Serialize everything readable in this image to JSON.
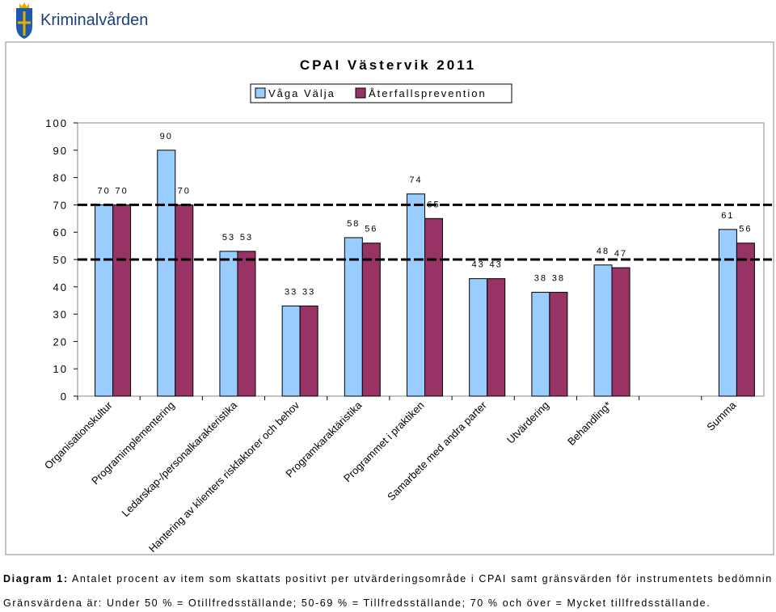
{
  "header": {
    "logo": "Kriminalvården"
  },
  "chart_data": {
    "type": "bar",
    "title": "CPAI Västervik 2011",
    "categories": [
      "Organisationskultur",
      "Programimplementering",
      "Ledarskap-/personalkarakteristika",
      "Hantering av klienters riskfaktorer och behov",
      "Programkaraktäristika",
      "Programmet i praktiken",
      "Samarbete med andra parter",
      "Utvärdering",
      "Behandling*",
      null,
      "Summa"
    ],
    "series": [
      {
        "name": "Våga Välja",
        "color": "#99ccff",
        "values": [
          70,
          90,
          53,
          33,
          58,
          74,
          43,
          38,
          48,
          null,
          61
        ]
      },
      {
        "name": "Återfallsprevention",
        "color": "#993366",
        "values": [
          70,
          70,
          53,
          33,
          56,
          65,
          43,
          38,
          47,
          null,
          56
        ]
      }
    ],
    "ylim": [
      0,
      100
    ],
    "yticks": [
      0,
      10,
      20,
      30,
      40,
      50,
      60,
      70,
      80,
      90,
      100
    ],
    "reference_lines": [
      50,
      70
    ],
    "legend": "top",
    "grid": false
  },
  "caption": {
    "label": "Diagram 1:",
    "text": "Antalet procent av item som skattats positivt per utvärderingsområde i CPAI samt gränsvärden för instrumentets bedömningskategorier.",
    "line2": "Gränsvärdena är: Under 50 % = Otillfredsställande; 50-69 % = Tillfredsställande; 70 % och över = Mycket tillfredsställande."
  }
}
